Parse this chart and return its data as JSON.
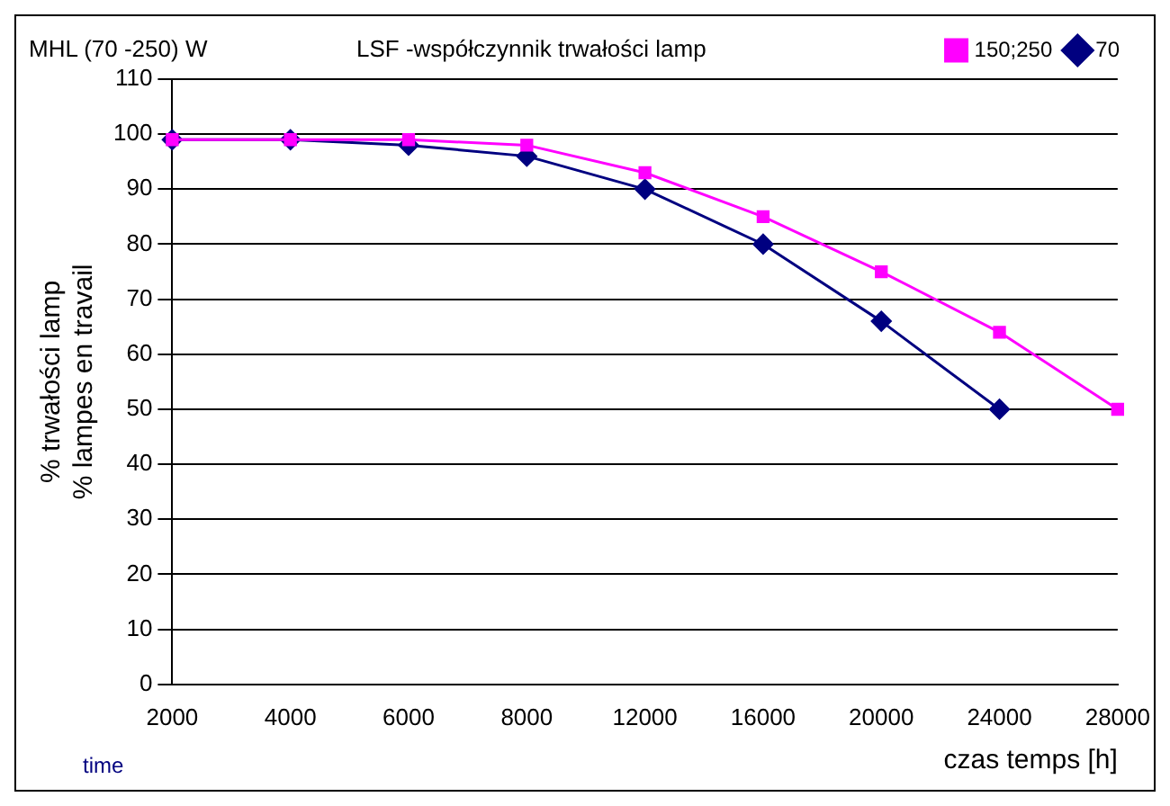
{
  "chart_data": {
    "type": "line",
    "title": "MHL (70 -250) W",
    "subtitle": "LSF -współczynnik trwałości lamp",
    "ylabel": "% trwałości lamp\n% lampes en travail",
    "xlabel": "czas temps [h]",
    "annotations": [
      "time"
    ],
    "categories": [
      "2000",
      "4000",
      "6000",
      "8000",
      "12000",
      "16000",
      "20000",
      "24000",
      "28000"
    ],
    "series": [
      {
        "name": "70",
        "color": "#000080",
        "marker": "diamond",
        "values": [
          99,
          99,
          98,
          96,
          90,
          80,
          66,
          50,
          null
        ]
      },
      {
        "name": "150;250",
        "color": "#ff00ff",
        "marker": "square",
        "values": [
          99,
          99,
          99,
          98,
          93,
          85,
          75,
          64,
          50
        ]
      }
    ],
    "ylim": [
      0,
      110
    ],
    "yticks": [
      0,
      10,
      20,
      30,
      40,
      50,
      60,
      70,
      80,
      90,
      100,
      110
    ],
    "grid": "y",
    "legend": "top right",
    "line_style": "solid"
  }
}
